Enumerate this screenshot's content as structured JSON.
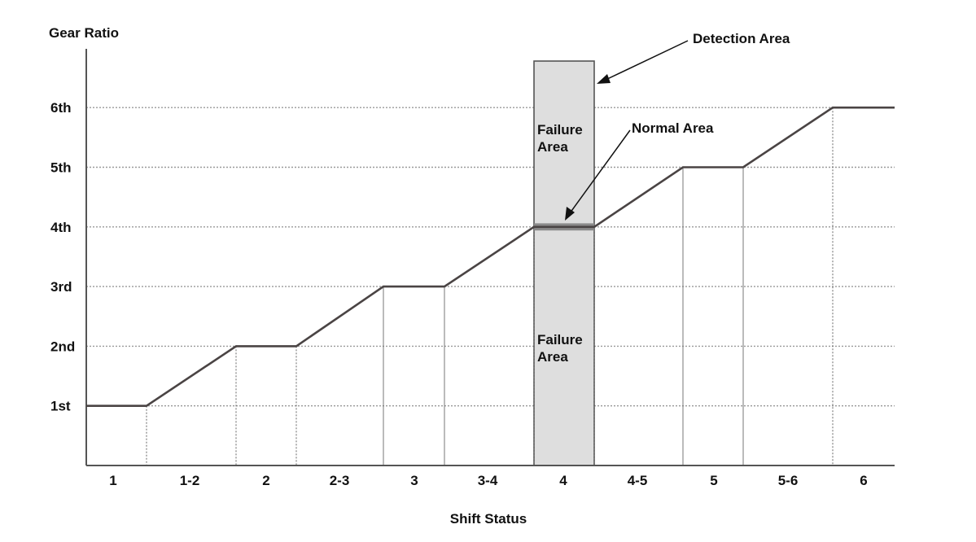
{
  "chart_data": {
    "type": "line",
    "title": "",
    "xlabel": "Shift Status",
    "ylabel": "Gear Ratio",
    "categories": [
      "1",
      "1-2",
      "2",
      "2-3",
      "3",
      "3-4",
      "4",
      "4-5",
      "5",
      "5-6",
      "6"
    ],
    "y_tick_labels": [
      "1st",
      "2nd",
      "3rd",
      "4th",
      "5th",
      "6th"
    ],
    "ylim": [
      0,
      6.8
    ],
    "grid": "horizontal dotted at each gear",
    "series": [
      {
        "values_by_category": [
          1,
          1.5,
          2,
          2.5,
          3,
          3.5,
          4,
          4.5,
          5,
          5.5,
          6
        ],
        "points": [
          {
            "x": 0,
            "y": 1
          },
          {
            "x": 1,
            "y": 1
          },
          {
            "x": 2.5,
            "y": 2
          },
          {
            "x": 3.5,
            "y": 2
          },
          {
            "x": 5,
            "y": 3
          },
          {
            "x": 6,
            "y": 3
          },
          {
            "x": 7.5,
            "y": 4
          },
          {
            "x": 8.5,
            "y": 4
          },
          {
            "x": 10,
            "y": 5
          },
          {
            "x": 11,
            "y": 5
          },
          {
            "x": 12.5,
            "y": 6
          },
          {
            "x": 13.5,
            "y": 6
          }
        ]
      }
    ],
    "detection_area": {
      "category": "4",
      "y_range": [
        0,
        6.78
      ]
    },
    "normal_area": {
      "y_range": [
        3.94,
        4.06
      ]
    },
    "annotations": {
      "detection_area": "Detection Area",
      "normal_area": "Normal Area",
      "failure_area_upper": [
        "Failure",
        "Area"
      ],
      "failure_area_lower": [
        "Failure",
        "Area"
      ]
    },
    "colors": {
      "line": "#4a4444",
      "detection_fill": "#dedede",
      "normal_band": "#8a8a8a",
      "grid": "#999999"
    }
  }
}
